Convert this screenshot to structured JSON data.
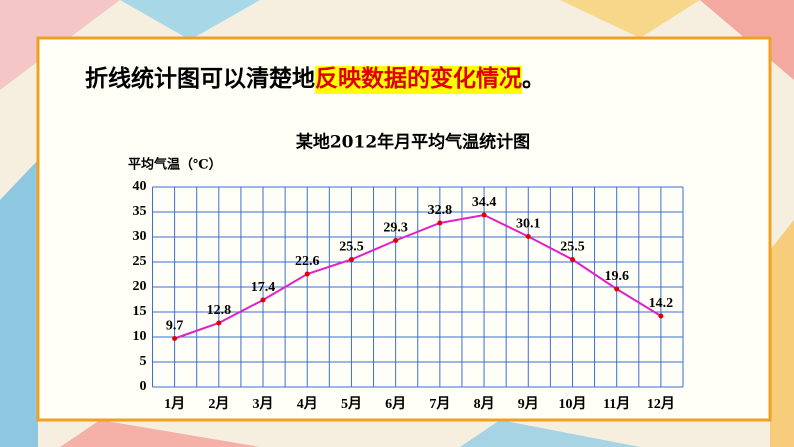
{
  "slide": {
    "text_parts": [
      "折线统计图可以清楚地",
      "反映数据的变化情况",
      "。"
    ]
  },
  "chart_data": {
    "type": "line",
    "title": "某地2012年月平均气温统计图",
    "y_label": "平均气温（℃）",
    "categories": [
      "1月",
      "2月",
      "3月",
      "4月",
      "5月",
      "6月",
      "7月",
      "8月",
      "9月",
      "10月",
      "11月",
      "12月"
    ],
    "values": [
      9.7,
      12.8,
      17.4,
      22.6,
      25.5,
      29.3,
      32.8,
      34.4,
      30.1,
      25.5,
      19.6,
      14.2
    ],
    "color": "#e020c8",
    "point_color": "#e00000",
    "ylim": [
      0,
      40
    ],
    "yticks": [
      0,
      5,
      10,
      15,
      20,
      25,
      30,
      35,
      40
    ],
    "grid": true
  }
}
